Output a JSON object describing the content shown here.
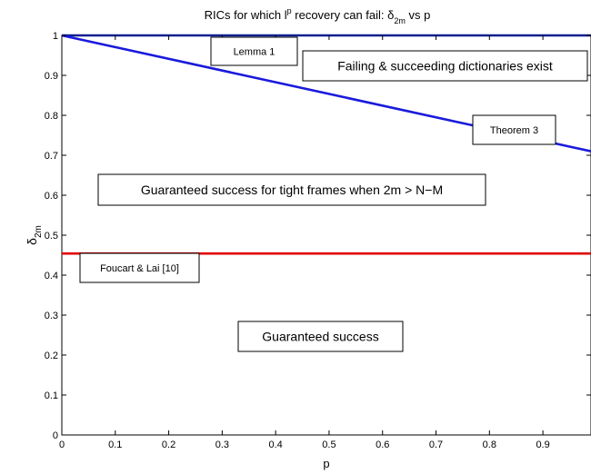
{
  "chart_data": {
    "type": "line",
    "title": "RICs for which l",
    "title_sup": "p",
    "title_mid": " recovery can fail: δ",
    "title_sub": "2m",
    "title_end": " vs p",
    "xlabel": "p",
    "ylabel": "δ",
    "ylabel_sub": "2m",
    "xlim": [
      0,
      0.99
    ],
    "ylim": [
      0,
      1
    ],
    "xticks": [
      "0",
      "0.1",
      "0.2",
      "0.3",
      "0.4",
      "0.5",
      "0.6",
      "0.7",
      "0.8",
      "0.9"
    ],
    "yticks": [
      "0",
      "0.1",
      "0.2",
      "0.3",
      "0.4",
      "0.5",
      "0.6",
      "0.7",
      "0.8",
      "0.9",
      "1"
    ],
    "grid": false,
    "series": [
      {
        "x": [
          0,
          0.99
        ],
        "y": [
          1,
          1
        ],
        "color": "#0a1f8f"
      },
      {
        "x": [
          0,
          0.99
        ],
        "y": [
          1,
          0.71
        ],
        "color": "#1a1adc"
      },
      {
        "x": [
          0,
          0.99
        ],
        "y": [
          0.454,
          0.454
        ],
        "color": "#e00000"
      }
    ],
    "annotations": [
      {
        "text": "Lemma 1"
      },
      {
        "text": "Failing & succeeding dictionaries exist"
      },
      {
        "text": "Theorem 3"
      },
      {
        "text": "Guaranteed success for tight frames when 2m > N−M"
      },
      {
        "text": "Foucart & Lai [10]"
      },
      {
        "text": "Guaranteed success"
      }
    ]
  }
}
